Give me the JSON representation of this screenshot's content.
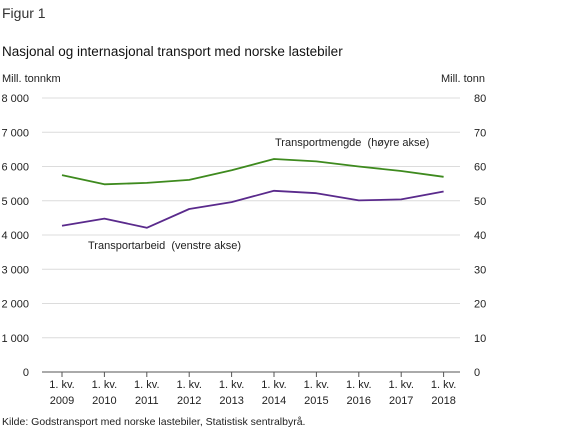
{
  "figure_label": "Figur 1",
  "source": "Kilde: Godstransport med norske lastebiler, Statistisk sentralbyrå.",
  "chart_data": {
    "type": "line",
    "title": "Nasjonal og internasjonal transport med norske lastebiler",
    "y_left_label": "Mill. tonnkm",
    "y_right_label": "Mill. tonn",
    "y_left_lim": [
      0,
      8000
    ],
    "y_right_lim": [
      0,
      80
    ],
    "y_left_ticks": [
      {
        "value": 0,
        "label": "0"
      },
      {
        "value": 1000,
        "label": "1 000"
      },
      {
        "value": 2000,
        "label": "2 000"
      },
      {
        "value": 3000,
        "label": "3 000"
      },
      {
        "value": 4000,
        "label": "4 000"
      },
      {
        "value": 5000,
        "label": "5 000"
      },
      {
        "value": 6000,
        "label": "6 000"
      },
      {
        "value": 7000,
        "label": "7 000"
      },
      {
        "value": 8000,
        "label": "8 000"
      }
    ],
    "y_right_ticks": [
      {
        "value": 0,
        "label": "0"
      },
      {
        "value": 10,
        "label": "10"
      },
      {
        "value": 20,
        "label": "20"
      },
      {
        "value": 30,
        "label": "30"
      },
      {
        "value": 40,
        "label": "40"
      },
      {
        "value": 50,
        "label": "50"
      },
      {
        "value": 60,
        "label": "60"
      },
      {
        "value": 70,
        "label": "70"
      },
      {
        "value": 80,
        "label": "80"
      }
    ],
    "x_ticks": [
      {
        "line1": "1. kv.",
        "line2": "2009"
      },
      {
        "line1": "1. kv.",
        "line2": "2010"
      },
      {
        "line1": "1. kv.",
        "line2": "2011"
      },
      {
        "line1": "1. kv.",
        "line2": "2012"
      },
      {
        "line1": "1. kv.",
        "line2": "2013"
      },
      {
        "line1": "1. kv.",
        "line2": "2014"
      },
      {
        "line1": "1. kv.",
        "line2": "2015"
      },
      {
        "line1": "1. kv.",
        "line2": "2016"
      },
      {
        "line1": "1. kv.",
        "line2": "2017"
      },
      {
        "line1": "1. kv.",
        "line2": "2018"
      }
    ],
    "grid": true,
    "series": [
      {
        "name": "Transportmengde  (høyre akse)",
        "axis": "right",
        "color": "#3e8a1e",
        "values": [
          57.5,
          54.8,
          55.2,
          56.1,
          58.9,
          62.2,
          61.5,
          60.0,
          58.7,
          57.0
        ]
      },
      {
        "name": "Transportarbeid  (venstre akse)",
        "axis": "left",
        "color": "#5a2a8c",
        "values": [
          4270,
          4480,
          4210,
          4760,
          4960,
          5290,
          5220,
          5010,
          5040,
          5270
        ]
      }
    ]
  }
}
